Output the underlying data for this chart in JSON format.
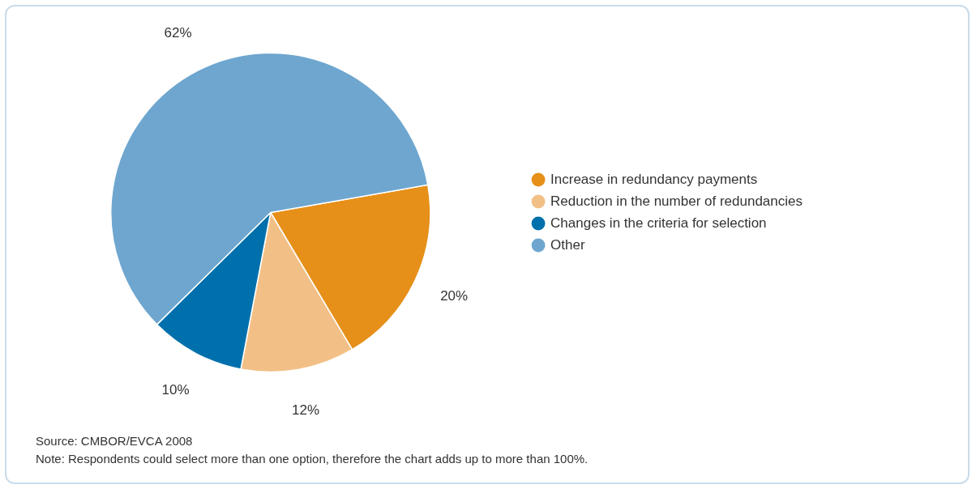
{
  "chart_data": {
    "type": "pie",
    "categories": [
      "Increase in redundancy payments",
      "Reduction in the number of redundancies",
      "Changes in the criteria for selection",
      "Other"
    ],
    "values": [
      20,
      12,
      10,
      62
    ],
    "colors": [
      "#e6901a",
      "#f2c086",
      "#0070ac",
      "#6ea6cf"
    ],
    "value_labels": [
      "20%",
      "12%",
      "10%",
      "62%"
    ],
    "legend": "right",
    "annotations": [
      "Source: CMBOR/EVCA 2008",
      "Note: Respondents could select more than one option, therefore the chart adds up to more than 100%."
    ]
  }
}
